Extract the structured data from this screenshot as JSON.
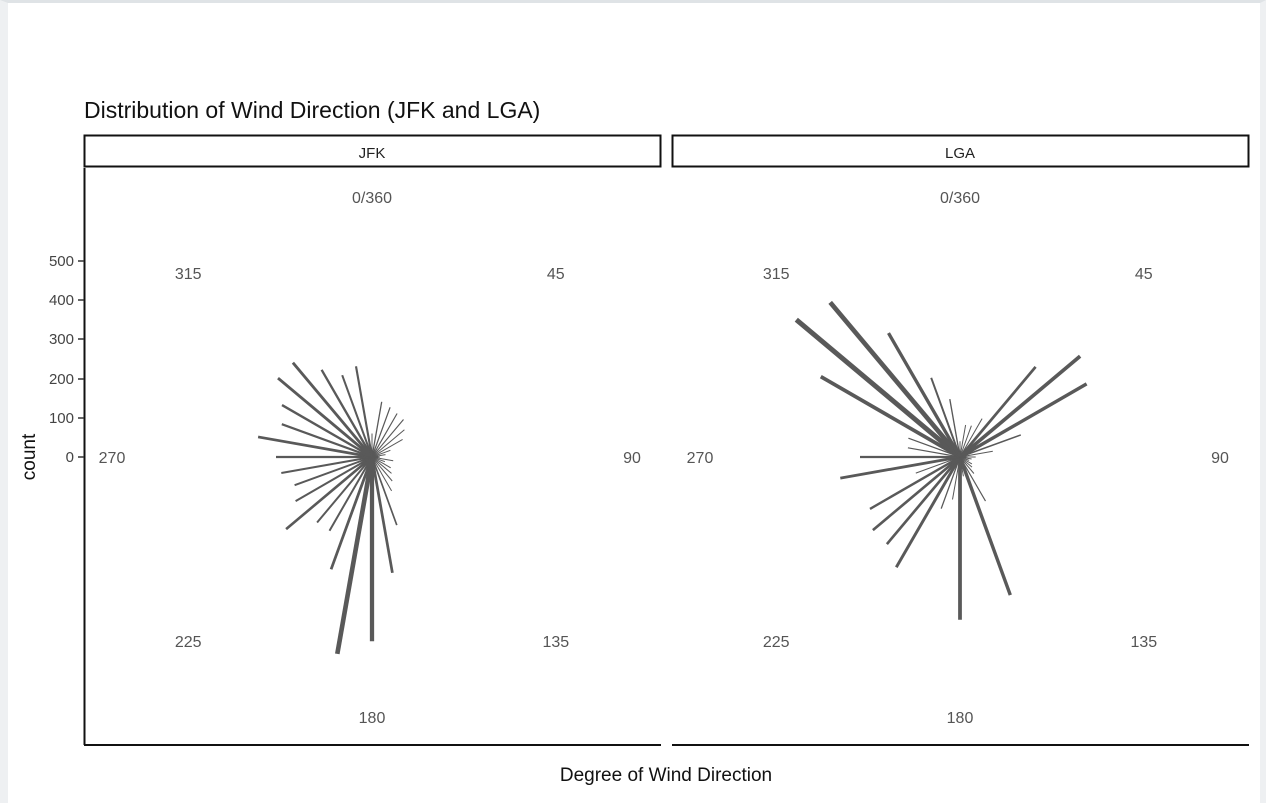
{
  "chart_data": {
    "type": "polar-bar",
    "title": "Distribution of Wind Direction (JFK and LGA)",
    "xlabel": "Degree of Wind Direction",
    "ylabel": "count",
    "y_ticks": [
      "0",
      "100",
      "200",
      "300",
      "400",
      "500"
    ],
    "ylim": [
      0,
      500
    ],
    "angle_labels": [
      {
        "angle": 0,
        "label": "0/360"
      },
      {
        "angle": 45,
        "label": "45"
      },
      {
        "angle": 90,
        "label": "90"
      },
      {
        "angle": 135,
        "label": "135"
      },
      {
        "angle": 180,
        "label": "180"
      },
      {
        "angle": 225,
        "label": "225"
      },
      {
        "angle": 270,
        "label": "270"
      },
      {
        "angle": 315,
        "label": "315"
      }
    ],
    "bar_color": "#595959",
    "panels": [
      {
        "name": "JFK",
        "data": [
          {
            "dir": 0,
            "count": 60
          },
          {
            "dir": 10,
            "count": 143
          },
          {
            "dir": 20,
            "count": 135
          },
          {
            "dir": 30,
            "count": 128
          },
          {
            "dir": 40,
            "count": 125
          },
          {
            "dir": 50,
            "count": 108
          },
          {
            "dir": 60,
            "count": 90
          },
          {
            "dir": 70,
            "count": 50
          },
          {
            "dir": 80,
            "count": 35
          },
          {
            "dir": 90,
            "count": 20
          },
          {
            "dir": 100,
            "count": 55
          },
          {
            "dir": 110,
            "count": 35
          },
          {
            "dir": 120,
            "count": 55
          },
          {
            "dir": 130,
            "count": 65
          },
          {
            "dir": 140,
            "count": 80
          },
          {
            "dir": 150,
            "count": 100
          },
          {
            "dir": 160,
            "count": 185
          },
          {
            "dir": 170,
            "count": 300
          },
          {
            "dir": 180,
            "count": 470
          },
          {
            "dir": 190,
            "count": 510
          },
          {
            "dir": 200,
            "count": 305
          },
          {
            "dir": 210,
            "count": 217
          },
          {
            "dir": 220,
            "count": 218
          },
          {
            "dir": 230,
            "count": 286
          },
          {
            "dir": 240,
            "count": 225
          },
          {
            "dir": 250,
            "count": 210
          },
          {
            "dir": 260,
            "count": 235
          },
          {
            "dir": 270,
            "count": 245
          },
          {
            "dir": 280,
            "count": 295
          },
          {
            "dir": 290,
            "count": 245
          },
          {
            "dir": 300,
            "count": 265
          },
          {
            "dir": 310,
            "count": 313
          },
          {
            "dir": 320,
            "count": 314
          },
          {
            "dir": 330,
            "count": 257
          },
          {
            "dir": 340,
            "count": 222
          },
          {
            "dir": 350,
            "count": 235
          }
        ]
      },
      {
        "name": "LGA",
        "data": [
          {
            "dir": 0,
            "count": 40
          },
          {
            "dir": 10,
            "count": 83
          },
          {
            "dir": 20,
            "count": 85
          },
          {
            "dir": 30,
            "count": 113
          },
          {
            "dir": 40,
            "count": 300
          },
          {
            "dir": 50,
            "count": 400
          },
          {
            "dir": 60,
            "count": 373
          },
          {
            "dir": 70,
            "count": 165
          },
          {
            "dir": 80,
            "count": 85
          },
          {
            "dir": 90,
            "count": 40
          },
          {
            "dir": 100,
            "count": 30
          },
          {
            "dir": 110,
            "count": 25
          },
          {
            "dir": 120,
            "count": 35
          },
          {
            "dir": 130,
            "count": 40
          },
          {
            "dir": 140,
            "count": 55
          },
          {
            "dir": 150,
            "count": 130
          },
          {
            "dir": 160,
            "count": 375
          },
          {
            "dir": 170,
            "count": 50
          },
          {
            "dir": 180,
            "count": 415
          },
          {
            "dir": 190,
            "count": 110
          },
          {
            "dir": 200,
            "count": 140
          },
          {
            "dir": 210,
            "count": 325
          },
          {
            "dir": 220,
            "count": 290
          },
          {
            "dir": 230,
            "count": 290
          },
          {
            "dir": 240,
            "count": 265
          },
          {
            "dir": 250,
            "count": 120
          },
          {
            "dir": 260,
            "count": 310
          },
          {
            "dir": 270,
            "count": 255
          },
          {
            "dir": 280,
            "count": 135
          },
          {
            "dir": 290,
            "count": 140
          },
          {
            "dir": 300,
            "count": 410
          },
          {
            "dir": 310,
            "count": 545
          },
          {
            "dir": 320,
            "count": 515
          },
          {
            "dir": 330,
            "count": 365
          },
          {
            "dir": 340,
            "count": 215
          },
          {
            "dir": 350,
            "count": 150
          }
        ]
      }
    ]
  }
}
